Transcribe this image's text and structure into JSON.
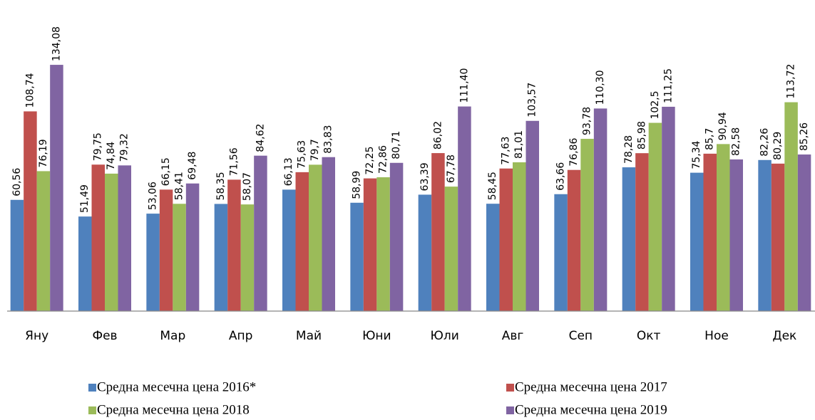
{
  "chart_data": {
    "type": "bar",
    "categories": [
      "Яну",
      "Фев",
      "Мар",
      "Апр",
      "Май",
      "Юни",
      "Юли",
      "Авг",
      "Сеп",
      "Окт",
      "Ное",
      "Дек"
    ],
    "ylim": [
      0,
      160
    ],
    "legend": "bottom",
    "series": [
      {
        "name": "Средна месечна цена 2016*",
        "color": "#4f81bd",
        "values": [
          60.56,
          51.49,
          53.06,
          58.35,
          66.13,
          58.99,
          63.39,
          58.45,
          63.66,
          78.28,
          75.34,
          82.26
        ],
        "value_labels": [
          "60,56",
          "51,49",
          "53,06",
          "58,35",
          "66,13",
          "58,99",
          "63,39",
          "58,45",
          "63,66",
          "78,28",
          "75,34",
          "82,26"
        ]
      },
      {
        "name": "Средна месечна цена 2017",
        "color": "#c0504d",
        "values": [
          108.74,
          79.75,
          66.15,
          71.56,
          75.63,
          72.25,
          86.02,
          77.63,
          76.86,
          85.98,
          85.7,
          80.29
        ],
        "value_labels": [
          "108,74",
          "79,75",
          "66,15",
          "71,56",
          "75,63",
          "72,25",
          "86,02",
          "77,63",
          "76,86",
          "85,98",
          "85,7",
          "80,29"
        ]
      },
      {
        "name": "Средна месечна цена 2018",
        "color": "#9bbb59",
        "values": [
          76.19,
          74.84,
          58.41,
          58.07,
          79.7,
          72.86,
          67.78,
          81.01,
          93.78,
          102.5,
          90.94,
          113.72
        ],
        "value_labels": [
          "76,19",
          "74,84",
          "58,41",
          "58,07",
          "79,7",
          "72,86",
          "67,78",
          "81,01",
          "93,78",
          "102,5",
          "90,94",
          "113,72"
        ]
      },
      {
        "name": "Средна месечна цена 2019",
        "color": "#8064a2",
        "values": [
          134.08,
          79.32,
          69.48,
          84.62,
          83.83,
          80.71,
          111.4,
          103.57,
          110.3,
          111.25,
          82.58,
          85.26
        ],
        "value_labels": [
          "134,08",
          "79,32",
          "69,48",
          "84,62",
          "83,83",
          "80,71",
          "111,40",
          "103,57",
          "110,30",
          "111,25",
          "82,58",
          "85,26"
        ]
      }
    ]
  }
}
